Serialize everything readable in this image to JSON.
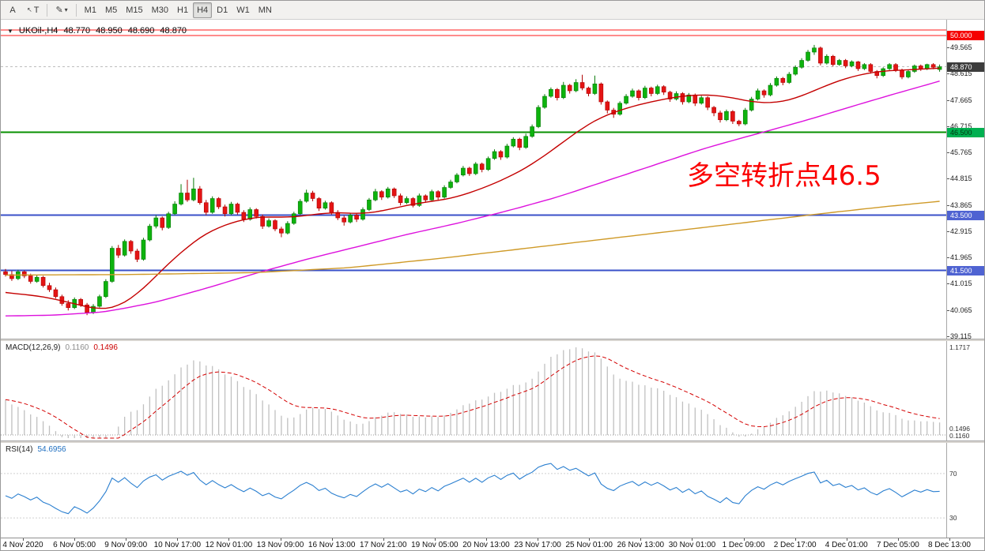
{
  "toolbar": {
    "tool_a": "A",
    "tool_text": "T",
    "tool_cursor_icon": "↖",
    "paint_icon": "✎",
    "dropdown": "▾",
    "timeframes": [
      "M1",
      "M5",
      "M15",
      "M30",
      "H1",
      "H4",
      "D1",
      "W1",
      "MN"
    ],
    "active_timeframe": "H4"
  },
  "header": {
    "collapse_icon": "▼",
    "symbol": "UKOil-,H4",
    "open": "48.770",
    "high": "48.950",
    "low": "48.690",
    "close": "48.870"
  },
  "annotation": {
    "text": "多空转折点46.5",
    "color": "#fb0000"
  },
  "price_axis": {
    "labels": [
      "49.565",
      "48.615",
      "47.665",
      "46.715",
      "45.765",
      "44.815",
      "43.865",
      "42.915",
      "41.965",
      "41.015",
      "40.065",
      "39.115"
    ],
    "badges": [
      {
        "text": "50.000",
        "price": 50.0,
        "bg": "#f50000",
        "fg": "#ffffff"
      },
      {
        "text": "48.870",
        "price": 48.87,
        "bg": "#3c3c3c",
        "fg": "#ffffff"
      },
      {
        "text": "46.500",
        "price": 46.5,
        "bg": "#00b050",
        "fg": "#00330f"
      },
      {
        "text": "43.500",
        "price": 43.5,
        "bg": "#4f63d2",
        "fg": "#ffffff"
      },
      {
        "text": "41.500",
        "price": 41.5,
        "bg": "#4f63d2",
        "fg": "#ffffff"
      }
    ]
  },
  "hlines": [
    {
      "price": 50.2,
      "color": "#ff1a1a",
      "width": 1
    },
    {
      "price": 50.0,
      "color": "#ff1a1a",
      "width": 1
    },
    {
      "price": 46.5,
      "color": "#089000",
      "width": 2
    },
    {
      "price": 43.5,
      "color": "#3a50c8",
      "width": 2
    },
    {
      "price": 41.5,
      "color": "#3a50c8",
      "width": 2
    },
    {
      "price": 48.87,
      "color": "#bdbdbd",
      "width": 1,
      "dash": "3,3"
    }
  ],
  "chart_data": {
    "type": "candlestick",
    "symbol": "UKOil-,H4",
    "timeframe": "H4",
    "y_axis_range": [
      39.0,
      50.3
    ],
    "ohlc": [
      [
        41.45,
        41.55,
        41.28,
        41.35
      ],
      [
        41.35,
        41.48,
        41.12,
        41.2
      ],
      [
        41.2,
        41.52,
        41.15,
        41.45
      ],
      [
        41.45,
        41.5,
        41.22,
        41.3
      ],
      [
        41.3,
        41.38,
        41.02,
        41.1
      ],
      [
        41.1,
        41.32,
        41.05,
        41.25
      ],
      [
        41.25,
        41.3,
        40.88,
        40.95
      ],
      [
        40.95,
        41.05,
        40.72,
        40.8
      ],
      [
        40.8,
        40.88,
        40.48,
        40.55
      ],
      [
        40.55,
        40.62,
        40.22,
        40.3
      ],
      [
        40.3,
        40.42,
        40.05,
        40.15
      ],
      [
        40.15,
        40.52,
        40.1,
        40.45
      ],
      [
        40.45,
        40.5,
        40.18,
        40.25
      ],
      [
        40.25,
        40.32,
        39.88,
        39.98
      ],
      [
        39.98,
        40.28,
        39.92,
        40.2
      ],
      [
        40.2,
        40.62,
        40.15,
        40.55
      ],
      [
        40.55,
        41.18,
        40.5,
        41.1
      ],
      [
        41.1,
        42.38,
        41.05,
        42.3
      ],
      [
        42.3,
        42.42,
        41.95,
        42.05
      ],
      [
        42.05,
        42.62,
        42.0,
        42.55
      ],
      [
        42.55,
        42.6,
        42.1,
        42.2
      ],
      [
        42.2,
        42.28,
        41.8,
        41.9
      ],
      [
        41.9,
        42.68,
        41.85,
        42.6
      ],
      [
        42.6,
        43.18,
        42.55,
        43.1
      ],
      [
        43.1,
        43.5,
        43.02,
        43.4
      ],
      [
        43.4,
        43.45,
        42.95,
        43.05
      ],
      [
        43.05,
        43.62,
        43.0,
        43.55
      ],
      [
        43.55,
        44.0,
        43.5,
        43.9
      ],
      [
        43.9,
        44.62,
        43.85,
        44.3
      ],
      [
        44.3,
        44.78,
        43.98,
        44.05
      ],
      [
        44.05,
        44.85,
        44.0,
        44.45
      ],
      [
        44.45,
        44.55,
        43.88,
        43.95
      ],
      [
        43.95,
        44.05,
        43.5,
        43.6
      ],
      [
        43.6,
        44.18,
        43.55,
        44.1
      ],
      [
        44.1,
        44.15,
        43.72,
        43.8
      ],
      [
        43.8,
        43.88,
        43.45,
        43.55
      ],
      [
        43.55,
        43.98,
        43.5,
        43.9
      ],
      [
        43.9,
        43.95,
        43.52,
        43.6
      ],
      [
        43.6,
        43.68,
        43.25,
        43.35
      ],
      [
        43.35,
        43.78,
        43.3,
        43.7
      ],
      [
        43.7,
        43.75,
        43.38,
        43.45
      ],
      [
        43.45,
        43.52,
        43.0,
        43.1
      ],
      [
        43.1,
        43.38,
        43.05,
        43.3
      ],
      [
        43.3,
        43.35,
        42.92,
        43.0
      ],
      [
        43.0,
        43.08,
        42.7,
        42.85
      ],
      [
        42.85,
        43.28,
        42.8,
        43.2
      ],
      [
        43.2,
        43.62,
        43.15,
        43.55
      ],
      [
        43.55,
        44.08,
        43.5,
        44.0
      ],
      [
        44.0,
        44.42,
        43.95,
        44.3
      ],
      [
        44.3,
        44.38,
        44.0,
        44.1
      ],
      [
        44.1,
        44.15,
        43.65,
        43.75
      ],
      [
        43.75,
        44.02,
        43.7,
        43.95
      ],
      [
        43.95,
        44.0,
        43.52,
        43.6
      ],
      [
        43.6,
        43.68,
        43.32,
        43.4
      ],
      [
        43.4,
        43.48,
        43.12,
        43.25
      ],
      [
        43.25,
        43.58,
        43.2,
        43.5
      ],
      [
        43.5,
        43.55,
        43.25,
        43.35
      ],
      [
        43.35,
        43.78,
        43.3,
        43.7
      ],
      [
        43.7,
        44.12,
        43.65,
        44.05
      ],
      [
        44.05,
        44.45,
        44.0,
        44.35
      ],
      [
        44.35,
        44.4,
        44.05,
        44.15
      ],
      [
        44.15,
        44.52,
        44.1,
        44.45
      ],
      [
        44.45,
        44.5,
        44.12,
        44.2
      ],
      [
        44.2,
        44.28,
        43.85,
        43.95
      ],
      [
        43.95,
        44.18,
        43.9,
        44.1
      ],
      [
        44.1,
        44.15,
        43.78,
        43.85
      ],
      [
        43.85,
        44.28,
        43.8,
        44.2
      ],
      [
        44.2,
        44.25,
        43.95,
        44.05
      ],
      [
        44.05,
        44.42,
        44.0,
        44.35
      ],
      [
        44.35,
        44.4,
        44.05,
        44.15
      ],
      [
        44.15,
        44.58,
        44.1,
        44.5
      ],
      [
        44.5,
        44.78,
        44.45,
        44.7
      ],
      [
        44.7,
        45.02,
        44.65,
        44.95
      ],
      [
        44.95,
        45.28,
        44.9,
        45.2
      ],
      [
        45.2,
        45.25,
        44.92,
        45.0
      ],
      [
        45.0,
        45.42,
        44.95,
        45.35
      ],
      [
        45.35,
        45.4,
        45.05,
        45.15
      ],
      [
        45.15,
        45.62,
        45.1,
        45.55
      ],
      [
        45.55,
        45.88,
        45.5,
        45.8
      ],
      [
        45.8,
        45.85,
        45.5,
        45.6
      ],
      [
        45.6,
        46.08,
        45.55,
        46.0
      ],
      [
        46.0,
        46.32,
        45.95,
        46.25
      ],
      [
        46.25,
        46.3,
        45.85,
        45.95
      ],
      [
        45.95,
        46.45,
        45.9,
        46.35
      ],
      [
        46.35,
        46.78,
        46.3,
        46.7
      ],
      [
        46.7,
        47.48,
        46.65,
        47.4
      ],
      [
        47.4,
        47.88,
        47.35,
        47.8
      ],
      [
        47.8,
        48.12,
        47.75,
        48.05
      ],
      [
        48.05,
        48.1,
        47.65,
        47.75
      ],
      [
        47.75,
        48.32,
        47.7,
        48.2
      ],
      [
        48.2,
        48.25,
        47.9,
        48.0
      ],
      [
        48.0,
        48.42,
        47.95,
        48.3
      ],
      [
        48.3,
        48.58,
        48.02,
        48.1
      ],
      [
        48.1,
        48.15,
        47.8,
        47.9
      ],
      [
        47.9,
        48.55,
        47.85,
        48.25
      ],
      [
        48.25,
        48.3,
        47.5,
        47.6
      ],
      [
        47.6,
        47.65,
        47.18,
        47.3
      ],
      [
        47.3,
        47.38,
        47.02,
        47.15
      ],
      [
        47.15,
        47.62,
        47.1,
        47.55
      ],
      [
        47.55,
        47.88,
        47.5,
        47.8
      ],
      [
        47.8,
        48.08,
        47.75,
        48.0
      ],
      [
        48.0,
        48.05,
        47.65,
        47.75
      ],
      [
        47.75,
        48.18,
        47.7,
        48.1
      ],
      [
        48.1,
        48.15,
        47.8,
        47.9
      ],
      [
        47.9,
        48.22,
        47.85,
        48.15
      ],
      [
        48.15,
        48.2,
        47.85,
        47.95
      ],
      [
        47.95,
        48.0,
        47.6,
        47.7
      ],
      [
        47.7,
        47.98,
        47.65,
        47.9
      ],
      [
        47.9,
        47.95,
        47.5,
        47.6
      ],
      [
        47.6,
        47.92,
        47.55,
        47.85
      ],
      [
        47.85,
        47.9,
        47.45,
        47.55
      ],
      [
        47.55,
        47.82,
        47.5,
        47.75
      ],
      [
        47.75,
        47.8,
        47.3,
        47.4
      ],
      [
        47.4,
        47.45,
        47.08,
        47.2
      ],
      [
        47.2,
        47.28,
        46.85,
        46.95
      ],
      [
        46.95,
        47.32,
        46.9,
        47.25
      ],
      [
        47.25,
        47.3,
        46.8,
        46.9
      ],
      [
        46.9,
        46.95,
        46.72,
        46.8
      ],
      [
        46.8,
        47.38,
        46.75,
        47.3
      ],
      [
        47.3,
        47.78,
        47.25,
        47.7
      ],
      [
        47.7,
        48.08,
        47.65,
        48.0
      ],
      [
        48.0,
        48.05,
        47.75,
        47.85
      ],
      [
        47.85,
        48.28,
        47.8,
        48.2
      ],
      [
        48.2,
        48.52,
        48.15,
        48.45
      ],
      [
        48.45,
        48.5,
        48.2,
        48.3
      ],
      [
        48.3,
        48.68,
        48.25,
        48.6
      ],
      [
        48.6,
        48.92,
        48.55,
        48.85
      ],
      [
        48.85,
        49.18,
        48.8,
        49.1
      ],
      [
        49.1,
        49.48,
        49.05,
        49.4
      ],
      [
        49.4,
        49.66,
        49.3,
        49.55
      ],
      [
        49.55,
        49.6,
        48.92,
        49.0
      ],
      [
        49.0,
        49.32,
        48.95,
        49.25
      ],
      [
        49.25,
        49.3,
        48.88,
        48.95
      ],
      [
        48.95,
        49.15,
        48.9,
        49.1
      ],
      [
        49.1,
        49.15,
        48.82,
        48.9
      ],
      [
        48.9,
        49.1,
        48.85,
        49.05
      ],
      [
        49.05,
        49.08,
        48.72,
        48.8
      ],
      [
        48.8,
        49.0,
        48.75,
        48.95
      ],
      [
        48.95,
        49.0,
        48.62,
        48.7
      ],
      [
        48.7,
        48.75,
        48.45,
        48.55
      ],
      [
        48.55,
        48.85,
        48.5,
        48.8
      ],
      [
        48.8,
        49.0,
        48.75,
        48.95
      ],
      [
        48.95,
        49.0,
        48.68,
        48.75
      ],
      [
        48.75,
        48.8,
        48.42,
        48.5
      ],
      [
        48.5,
        48.75,
        48.45,
        48.7
      ],
      [
        48.7,
        48.95,
        48.65,
        48.9
      ],
      [
        48.9,
        48.95,
        48.72,
        48.8
      ],
      [
        48.8,
        48.98,
        48.75,
        48.95
      ],
      [
        48.95,
        49.0,
        48.78,
        48.85
      ],
      [
        48.77,
        48.95,
        48.69,
        48.87
      ]
    ],
    "ma_overlays": [
      {
        "name": "ma-fast-red",
        "color": "#c40000",
        "points": [
          [
            0,
            40.7
          ],
          [
            6,
            40.55
          ],
          [
            10,
            40.35
          ],
          [
            14,
            40.12
          ],
          [
            17,
            40.1
          ],
          [
            20,
            40.45
          ],
          [
            23,
            41.05
          ],
          [
            26,
            41.75
          ],
          [
            29,
            42.35
          ],
          [
            32,
            42.85
          ],
          [
            35,
            43.15
          ],
          [
            38,
            43.35
          ],
          [
            41,
            43.45
          ],
          [
            44,
            43.42
          ],
          [
            47,
            43.45
          ],
          [
            50,
            43.55
          ],
          [
            53,
            43.6
          ],
          [
            56,
            43.55
          ],
          [
            59,
            43.6
          ],
          [
            62,
            43.75
          ],
          [
            65,
            43.9
          ],
          [
            68,
            44.0
          ],
          [
            71,
            44.1
          ],
          [
            74,
            44.3
          ],
          [
            77,
            44.55
          ],
          [
            80,
            44.85
          ],
          [
            83,
            45.2
          ],
          [
            86,
            45.65
          ],
          [
            89,
            46.15
          ],
          [
            92,
            46.65
          ],
          [
            95,
            47.05
          ],
          [
            98,
            47.3
          ],
          [
            101,
            47.5
          ],
          [
            104,
            47.65
          ],
          [
            107,
            47.78
          ],
          [
            110,
            47.85
          ],
          [
            113,
            47.85
          ],
          [
            116,
            47.75
          ],
          [
            119,
            47.6
          ],
          [
            122,
            47.55
          ],
          [
            125,
            47.65
          ],
          [
            128,
            47.9
          ],
          [
            131,
            48.2
          ],
          [
            134,
            48.45
          ],
          [
            137,
            48.62
          ],
          [
            140,
            48.72
          ],
          [
            143,
            48.75
          ],
          [
            146,
            48.78
          ],
          [
            149,
            48.82
          ]
        ]
      },
      {
        "name": "ma-mid-magenta",
        "color": "#dd11dd",
        "points": [
          [
            0,
            39.85
          ],
          [
            8,
            39.88
          ],
          [
            16,
            40.0
          ],
          [
            24,
            40.35
          ],
          [
            32,
            40.85
          ],
          [
            40,
            41.4
          ],
          [
            48,
            41.9
          ],
          [
            56,
            42.35
          ],
          [
            64,
            42.8
          ],
          [
            72,
            43.2
          ],
          [
            80,
            43.65
          ],
          [
            88,
            44.15
          ],
          [
            96,
            44.75
          ],
          [
            104,
            45.35
          ],
          [
            112,
            45.95
          ],
          [
            120,
            46.45
          ],
          [
            128,
            46.95
          ],
          [
            136,
            47.5
          ],
          [
            142,
            47.9
          ],
          [
            149,
            48.35
          ]
        ]
      },
      {
        "name": "ma-slow-orange",
        "color": "#cf9a28",
        "points": [
          [
            0,
            41.33
          ],
          [
            20,
            41.35
          ],
          [
            40,
            41.42
          ],
          [
            55,
            41.6
          ],
          [
            70,
            41.95
          ],
          [
            85,
            42.35
          ],
          [
            100,
            42.75
          ],
          [
            115,
            43.15
          ],
          [
            130,
            43.55
          ],
          [
            140,
            43.8
          ],
          [
            149,
            44.0
          ]
        ]
      }
    ],
    "macd": {
      "label": "MACD(12,26,9)",
      "main_value": "0.1160",
      "signal_value": "0.1496",
      "axis_top": "1.1717",
      "axis_values": [
        "0.1496",
        "0.1160"
      ],
      "params": [
        12,
        26,
        9
      ],
      "hist_color": "#c0c0c0",
      "signal_color": "#d40000"
    },
    "rsi": {
      "label": "RSI(14)",
      "value": "54.6956",
      "period": 14,
      "levels": [
        70,
        30
      ],
      "color": "#2a7fd0"
    },
    "x_labels": [
      "4 Nov 2020",
      "6 Nov 05:00",
      "9 Nov 09:00",
      "10 Nov 17:00",
      "12 Nov 01:00",
      "13 Nov 09:00",
      "16 Nov 13:00",
      "17 Nov 21:00",
      "19 Nov 05:00",
      "20 Nov 13:00",
      "23 Nov 17:00",
      "25 Nov 01:00",
      "26 Nov 13:00",
      "30 Nov 01:00",
      "1 Dec 09:00",
      "2 Dec 17:00",
      "4 Dec 01:00",
      "7 Dec 05:00",
      "8 Dec 13:00"
    ]
  }
}
